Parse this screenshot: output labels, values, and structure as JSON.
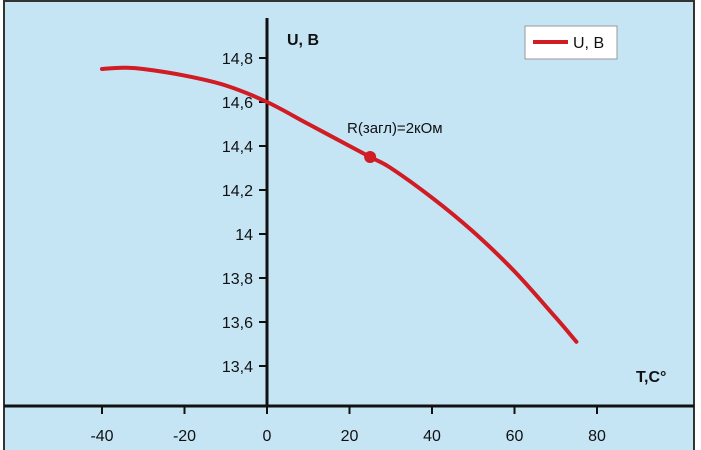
{
  "chart_data": {
    "type": "line",
    "title": "",
    "xlabel": "T,C°",
    "ylabel": "U, B",
    "xlim": [
      -50,
      90
    ],
    "ylim": [
      13.2,
      15.0
    ],
    "x_ticks": [
      -40,
      -20,
      0,
      20,
      40,
      60,
      80
    ],
    "x_tick_labels": [
      "-40",
      "-20",
      "0",
      "20",
      "40",
      "60",
      "80"
    ],
    "y_ticks": [
      13.4,
      13.6,
      13.8,
      14,
      14.2,
      14.4,
      14.6,
      14.8
    ],
    "y_tick_labels": [
      "13,4",
      "13,6",
      "13,8",
      "14",
      "14,2",
      "14,4",
      "14,6",
      "14,8"
    ],
    "grid": false,
    "legend_position": "top-right",
    "series": [
      {
        "name": "U, B",
        "color": "#d01c22",
        "x": [
          -40,
          -35,
          -30,
          -20,
          -10,
          0,
          10,
          20,
          25,
          30,
          40,
          50,
          60,
          70,
          75
        ],
        "y": [
          14.75,
          14.756,
          14.75,
          14.72,
          14.675,
          14.6,
          14.5,
          14.4,
          14.35,
          14.3,
          14.165,
          14.01,
          13.83,
          13.62,
          13.51
        ]
      }
    ],
    "annotations": [
      {
        "text": "R(загл)=2кОм",
        "x": 25,
        "y": 14.35
      }
    ],
    "background_color": "#c5e5f5",
    "axis_color": "#111111"
  }
}
